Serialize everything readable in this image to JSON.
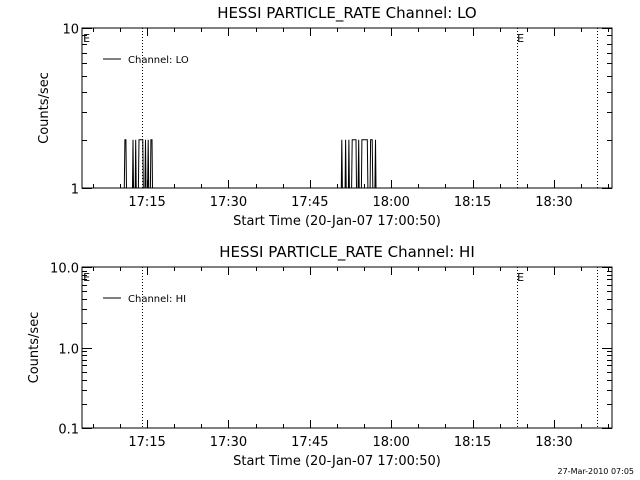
{
  "footer": {
    "timestamp": "27-Mar-2010 07:05"
  },
  "chart_data": [
    {
      "type": "line",
      "title": "HESSI PARTICLE_RATE Channel: LO",
      "xlabel": "Start Time (20-Jan-07 17:00:50)",
      "ylabel": "Counts/sec",
      "y_scale": "log",
      "ylim": [
        1,
        10
      ],
      "xlim_minutes": [
        3,
        40.7
      ],
      "x_ticks": [
        {
          "minute": 15,
          "label": "17:15"
        },
        {
          "minute": 30,
          "label": "17:30"
        },
        {
          "minute": 45,
          "label": "17:45"
        },
        {
          "minute": 60,
          "label": "18:00"
        },
        {
          "minute": 75,
          "label": "18:15"
        },
        {
          "minute": 90,
          "label": "18:30"
        }
      ],
      "xlim": [
        "17:03",
        "18:40:40"
      ],
      "y_ticks": [
        {
          "value": 1,
          "label": "1"
        },
        {
          "value": 10,
          "label": "10"
        }
      ],
      "y_minor": [
        2,
        3,
        4,
        5,
        6,
        7,
        8,
        9
      ],
      "legend": {
        "position": "top-left",
        "entries": [
          "Channel: LO"
        ]
      },
      "markers": [
        {
          "minute": 3.2,
          "label": "E"
        },
        {
          "minute": 83.2,
          "label": "E"
        }
      ],
      "vlines_minutes": [
        14.0,
        83.2,
        98.0
      ],
      "series": [
        {
          "name": "Channel: LO",
          "points": [
            [
              10.8,
              1
            ],
            [
              10.9,
              2
            ],
            [
              11.1,
              2
            ],
            [
              11.2,
              1
            ],
            [
              12.3,
              1
            ],
            [
              12.4,
              2
            ],
            [
              12.5,
              1
            ],
            [
              12.8,
              1
            ],
            [
              12.9,
              2
            ],
            [
              13.0,
              1
            ],
            [
              13.4,
              1
            ],
            [
              13.5,
              2
            ],
            [
              14.2,
              2
            ],
            [
              14.3,
              1
            ],
            [
              14.6,
              1
            ],
            [
              14.7,
              2
            ],
            [
              14.8,
              1
            ],
            [
              15.1,
              1
            ],
            [
              15.2,
              2
            ],
            [
              15.3,
              1
            ],
            [
              15.6,
              1
            ],
            [
              15.7,
              2
            ],
            [
              15.9,
              2
            ],
            [
              16.0,
              1
            ],
            [
              50.8,
              1
            ],
            [
              50.9,
              2
            ],
            [
              51.0,
              1
            ],
            [
              51.5,
              1
            ],
            [
              51.6,
              2
            ],
            [
              51.7,
              1
            ],
            [
              52.1,
              1
            ],
            [
              52.2,
              2
            ],
            [
              52.3,
              1
            ],
            [
              52.7,
              1
            ],
            [
              52.8,
              2
            ],
            [
              53.5,
              2
            ],
            [
              53.6,
              1
            ],
            [
              53.9,
              1
            ],
            [
              54.0,
              2
            ],
            [
              54.1,
              1
            ],
            [
              54.5,
              1
            ],
            [
              54.6,
              2
            ],
            [
              55.6,
              2
            ],
            [
              55.7,
              1
            ],
            [
              56.1,
              1
            ],
            [
              56.2,
              2
            ],
            [
              56.5,
              2
            ],
            [
              56.6,
              1
            ],
            [
              57.0,
              1
            ],
            [
              57.1,
              2
            ],
            [
              57.2,
              1
            ]
          ]
        }
      ]
    },
    {
      "type": "line",
      "title": "HESSI PARTICLE_RATE Channel: HI",
      "xlabel": "Start Time (20-Jan-07 17:00:50)",
      "ylabel": "Counts/sec",
      "y_scale": "log",
      "ylim": [
        0.1,
        10
      ],
      "xlim_minutes": [
        3,
        40.7
      ],
      "x_ticks": [
        {
          "minute": 15,
          "label": "17:15"
        },
        {
          "minute": 30,
          "label": "17:30"
        },
        {
          "minute": 45,
          "label": "17:45"
        },
        {
          "minute": 60,
          "label": "18:00"
        },
        {
          "minute": 75,
          "label": "18:15"
        },
        {
          "minute": 90,
          "label": "18:30"
        }
      ],
      "xlim": [
        "17:03",
        "18:40:40"
      ],
      "y_ticks": [
        {
          "value": 0.1,
          "label": "0.1"
        },
        {
          "value": 1,
          "label": "1.0"
        },
        {
          "value": 10,
          "label": "10.0"
        }
      ],
      "y_minor": [
        0.2,
        0.3,
        0.4,
        0.5,
        0.6,
        0.7,
        0.8,
        0.9,
        2,
        3,
        4,
        5,
        6,
        7,
        8,
        9
      ],
      "legend": {
        "position": "top-left",
        "entries": [
          "Channel: HI"
        ]
      },
      "markers": [
        {
          "minute": 3.2,
          "label": "E"
        },
        {
          "minute": 83.2,
          "label": "E"
        }
      ],
      "vlines_minutes": [
        14.0,
        83.2,
        98.0
      ],
      "series": [
        {
          "name": "Channel: HI",
          "points": []
        }
      ]
    }
  ]
}
